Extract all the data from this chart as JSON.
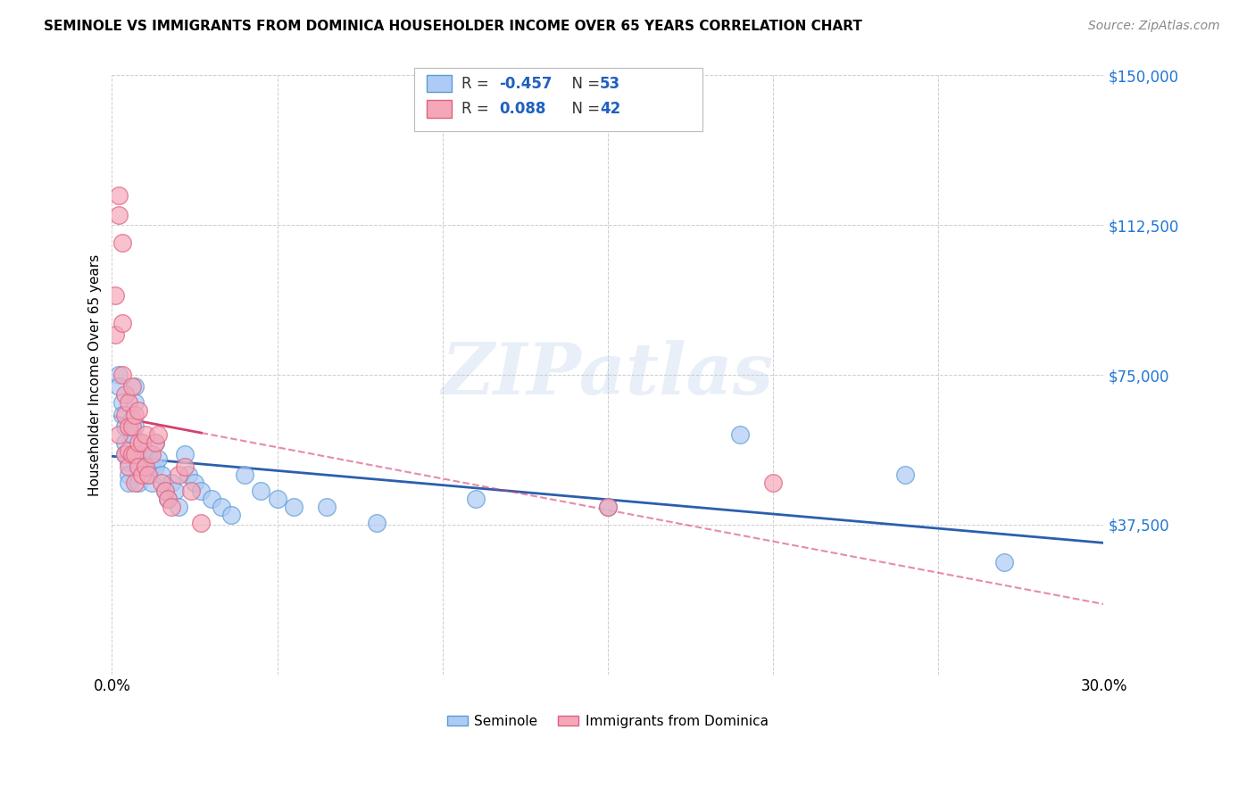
{
  "title": "SEMINOLE VS IMMIGRANTS FROM DOMINICA HOUSEHOLDER INCOME OVER 65 YEARS CORRELATION CHART",
  "source": "Source: ZipAtlas.com",
  "ylabel": "Householder Income Over 65 years",
  "xlim": [
    0.0,
    0.3
  ],
  "ylim": [
    0,
    150000
  ],
  "yticks": [
    0,
    37500,
    75000,
    112500,
    150000
  ],
  "ytick_labels": [
    "",
    "$37,500",
    "$75,000",
    "$112,500",
    "$150,000"
  ],
  "xticks": [
    0.0,
    0.05,
    0.1,
    0.15,
    0.2,
    0.25,
    0.3
  ],
  "xtick_labels": [
    "0.0%",
    "",
    "",
    "",
    "",
    "",
    "30.0%"
  ],
  "seminole_R": -0.457,
  "seminole_N": 53,
  "dominica_R": 0.088,
  "dominica_N": 42,
  "seminole_color": "#aecbf5",
  "seminole_edge_color": "#5b9bd5",
  "dominica_color": "#f4a7b9",
  "dominica_edge_color": "#e06080",
  "seminole_line_color": "#2b5fad",
  "dominica_line_color": "#d44070",
  "watermark": "ZIPatlas",
  "background_color": "#ffffff",
  "seminole_x": [
    0.002,
    0.002,
    0.003,
    0.003,
    0.004,
    0.004,
    0.004,
    0.005,
    0.005,
    0.005,
    0.006,
    0.006,
    0.007,
    0.007,
    0.007,
    0.008,
    0.008,
    0.008,
    0.009,
    0.009,
    0.01,
    0.01,
    0.011,
    0.011,
    0.012,
    0.012,
    0.013,
    0.013,
    0.014,
    0.015,
    0.016,
    0.017,
    0.018,
    0.019,
    0.02,
    0.022,
    0.023,
    0.025,
    0.027,
    0.03,
    0.033,
    0.036,
    0.04,
    0.045,
    0.05,
    0.055,
    0.065,
    0.08,
    0.11,
    0.15,
    0.19,
    0.24,
    0.27
  ],
  "seminole_y": [
    75000,
    72000,
    68000,
    65000,
    62000,
    58000,
    55000,
    53000,
    50000,
    48000,
    64000,
    60000,
    72000,
    68000,
    62000,
    55000,
    52000,
    48000,
    58000,
    54000,
    56000,
    52000,
    55000,
    50000,
    52000,
    48000,
    58000,
    52000,
    54000,
    50000,
    46000,
    44000,
    48000,
    46000,
    42000,
    55000,
    50000,
    48000,
    46000,
    44000,
    42000,
    40000,
    50000,
    46000,
    44000,
    42000,
    42000,
    38000,
    44000,
    42000,
    60000,
    50000,
    28000
  ],
  "dominica_x": [
    0.001,
    0.001,
    0.002,
    0.002,
    0.002,
    0.003,
    0.003,
    0.003,
    0.004,
    0.004,
    0.004,
    0.005,
    0.005,
    0.005,
    0.005,
    0.006,
    0.006,
    0.006,
    0.007,
    0.007,
    0.007,
    0.008,
    0.008,
    0.008,
    0.009,
    0.009,
    0.01,
    0.01,
    0.011,
    0.012,
    0.013,
    0.014,
    0.015,
    0.016,
    0.017,
    0.018,
    0.02,
    0.022,
    0.024,
    0.027,
    0.15,
    0.2
  ],
  "dominica_y": [
    95000,
    85000,
    120000,
    115000,
    60000,
    108000,
    88000,
    75000,
    70000,
    65000,
    55000,
    68000,
    62000,
    56000,
    52000,
    72000,
    62000,
    55000,
    65000,
    55000,
    48000,
    66000,
    58000,
    52000,
    58000,
    50000,
    60000,
    52000,
    50000,
    55000,
    58000,
    60000,
    48000,
    46000,
    44000,
    42000,
    50000,
    52000,
    46000,
    38000,
    42000,
    48000
  ]
}
